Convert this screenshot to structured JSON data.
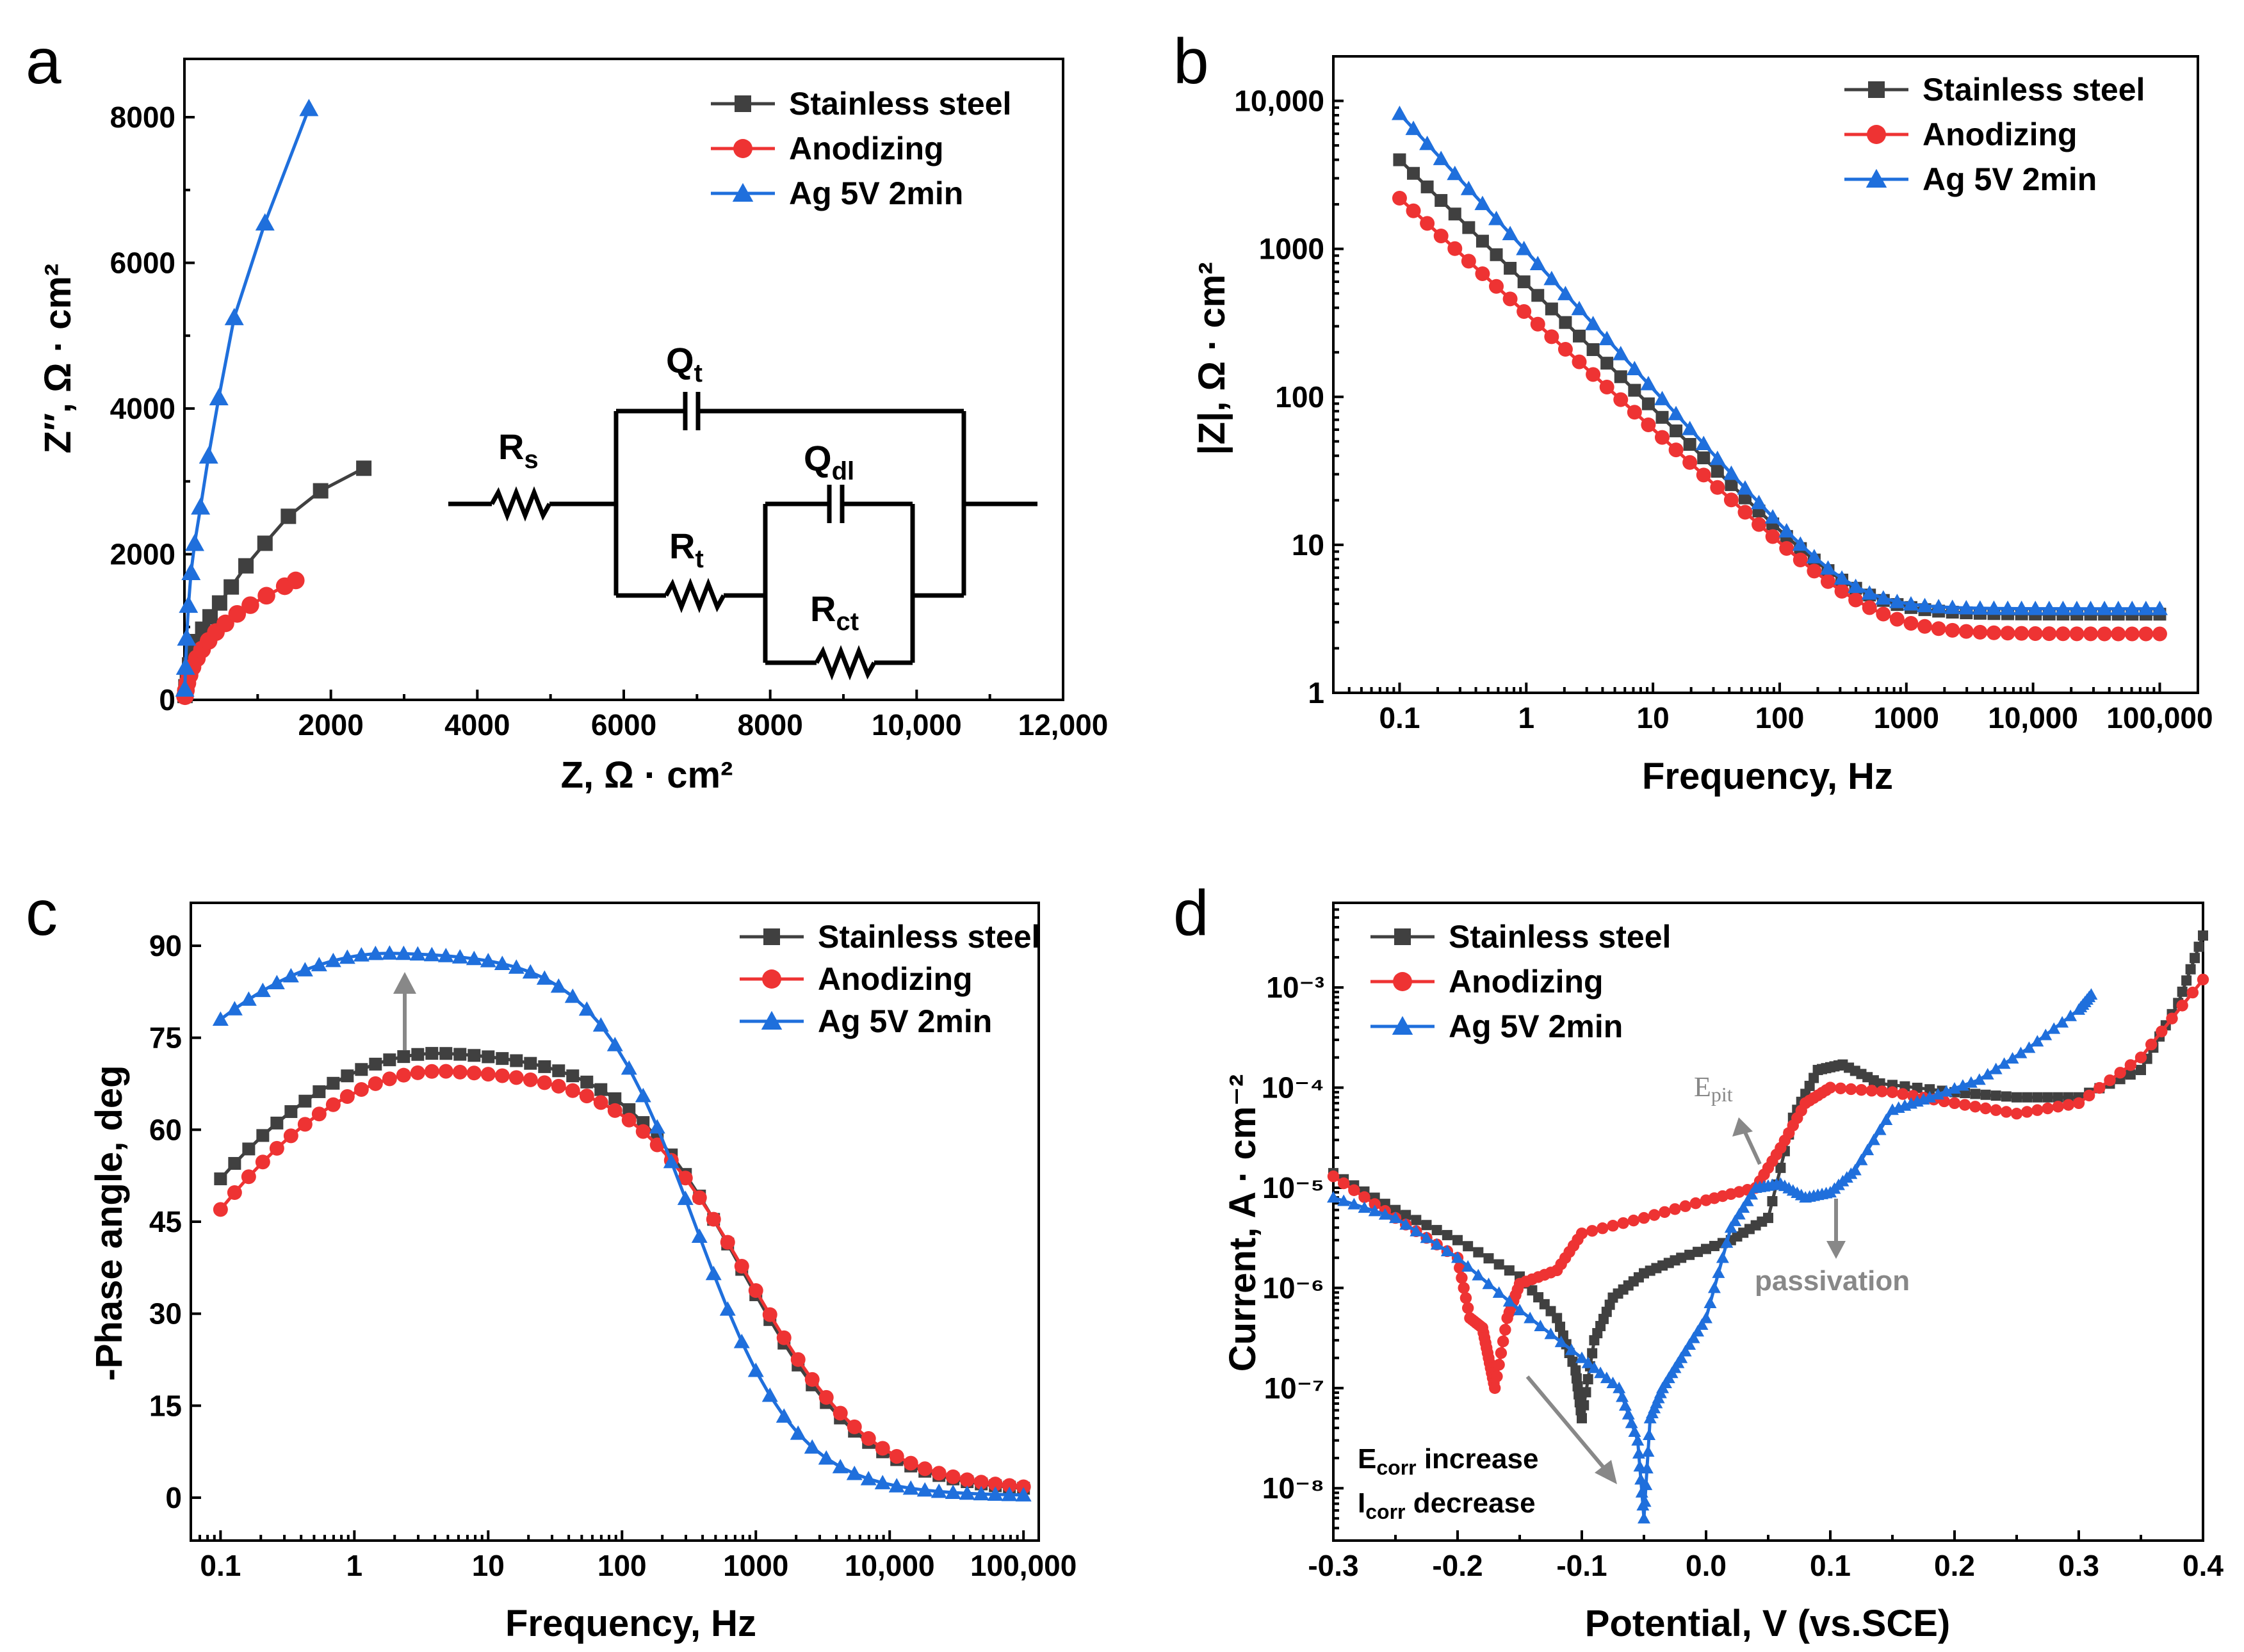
{
  "colors": {
    "Stainless steel": "#404040",
    "Anodizing": "#ee3333",
    "Ag 5V 2min": "#1f6fdc",
    "annotation": "#888888"
  },
  "legend_labels": [
    "Stainless steel",
    "Anodizing",
    "Ag 5V 2min"
  ],
  "circuit": {
    "Rs": "R",
    "Rs_sub": "s",
    "Qt": "Q",
    "Qt_sub": "t",
    "Qdl": "Q",
    "Qdl_sub": "dl",
    "Rt": "R",
    "Rt_sub": "t",
    "Rct": "R",
    "Rct_sub": "ct"
  },
  "annotations": {
    "epit": "E",
    "epit_sub": "pit",
    "passivation": "passivation",
    "ecorr": "E",
    "ecorr_sub": "corr",
    "ecorr_text": " increase",
    "icorr": "I",
    "icorr_sub": "corr",
    "icorr_text": " decrease"
  },
  "chart_data": [
    {
      "panel": "a",
      "type": "scatter",
      "title": "",
      "xlabel": "Z, Ω · cm²",
      "ylabel": "Z″, Ω · cm²",
      "xlim": [
        0,
        12000
      ],
      "ylim": [
        0,
        8800
      ],
      "xticks": [
        2000,
        4000,
        6000,
        8000,
        10000,
        12000
      ],
      "xtick_labels": [
        "2000",
        "4000",
        "6000",
        "8000",
        "10,000",
        "12,000"
      ],
      "yticks": [
        0,
        2000,
        4000,
        6000,
        8000
      ],
      "ytick_labels": [
        "0",
        "2000",
        "4000",
        "6000",
        "8000"
      ],
      "series": [
        {
          "name": "Stainless steel",
          "x": [
            8,
            20,
            40,
            70,
            110,
            170,
            250,
            350,
            480,
            640,
            840,
            1100,
            1420,
            1860,
            2450
          ],
          "y": [
            60,
            180,
            330,
            480,
            640,
            800,
            970,
            1140,
            1330,
            1550,
            1840,
            2150,
            2520,
            2870,
            3180
          ]
        },
        {
          "name": "Anodizing",
          "x": [
            8,
            20,
            40,
            70,
            110,
            170,
            240,
            330,
            430,
            560,
            720,
            900,
            1120,
            1370,
            1520
          ],
          "y": [
            50,
            130,
            230,
            340,
            450,
            570,
            690,
            810,
            930,
            1050,
            1180,
            1300,
            1430,
            1560,
            1640
          ]
        },
        {
          "name": "Ag 5V 2min",
          "x": [
            5,
            15,
            30,
            55,
            90,
            140,
            220,
            330,
            470,
            680,
            1100,
            1700
          ],
          "y": [
            150,
            450,
            850,
            1300,
            1750,
            2150,
            2650,
            3350,
            4150,
            5250,
            6550,
            8120
          ]
        }
      ]
    },
    {
      "panel": "b",
      "type": "line",
      "xscale": "log",
      "yscale": "log",
      "xlabel": "Frequency, Hz",
      "ylabel": "|Z|, Ω · cm²",
      "xlim": [
        0.03,
        200000
      ],
      "ylim": [
        1,
        20000
      ],
      "xtick_labels": [
        "0.1",
        "1",
        "10",
        "100",
        "1000",
        "10,000",
        "100,000"
      ],
      "ytick_labels": [
        "1",
        "10",
        "100",
        "1000",
        "10,000"
      ],
      "series": [
        {
          "name": "Stainless steel",
          "z_low": 4000,
          "slope": -0.84,
          "r_high": 3.4
        },
        {
          "name": "Anodizing",
          "z_low": 2200,
          "slope": -0.78,
          "r_high": 2.5
        },
        {
          "name": "Ag 5V 2min",
          "z_low": 8200,
          "slope": -0.93,
          "r_high": 3.7
        }
      ]
    },
    {
      "panel": "c",
      "type": "line",
      "xscale": "log",
      "xlabel": "Frequency, Hz",
      "ylabel": "-Phase angle, deg",
      "xlim": [
        0.06,
        130000
      ],
      "ylim": [
        -7,
        97
      ],
      "xtick_labels": [
        "0.1",
        "1",
        "10",
        "100",
        "1000",
        "10,000",
        "100,000"
      ],
      "ytick_labels": [
        "0",
        "15",
        "30",
        "45",
        "60",
        "75",
        "90"
      ],
      "series": [
        {
          "name": "Stainless steel",
          "start": 52,
          "peak": 73,
          "peak_freq": 5,
          "drop_freq": 800,
          "end": 0.8
        },
        {
          "name": "Anodizing",
          "start": 47,
          "peak": 70,
          "peak_freq": 5,
          "drop_freq": 900,
          "end": 1.0
        },
        {
          "name": "Ag 5V 2min",
          "start": 78,
          "peak": 89,
          "peak_freq": 2,
          "drop_freq": 350,
          "end": 0.3
        }
      ]
    },
    {
      "panel": "d",
      "type": "line",
      "yscale": "log",
      "xlabel": "Potential, V (vs.SCE)",
      "ylabel": "Current, A · cm⁻²",
      "xlim": [
        -0.3,
        0.4
      ],
      "ylim": [
        3e-09,
        0.007
      ],
      "xtick_labels": [
        "-0.3",
        "-0.2",
        "-0.1",
        "0.0",
        "0.1",
        "0.2",
        "0.3",
        "0.4"
      ],
      "ytick_labels": [
        "10⁻⁸",
        "10⁻⁷",
        "10⁻⁶",
        "10⁻⁵",
        "10⁻⁴",
        "10⁻³"
      ],
      "series": [
        {
          "name": "Stainless steel",
          "x": [
            -0.3,
            -0.25,
            -0.2,
            -0.15,
            -0.12,
            -0.105,
            -0.1,
            -0.09,
            -0.075,
            -0.05,
            -0.02,
            0.02,
            0.05,
            0.07,
            0.09,
            0.11,
            0.14,
            0.2,
            0.25,
            0.3,
            0.35,
            0.38,
            0.4
          ],
          "y": [
            1.4e-05,
            6e-06,
            3e-06,
            1.3e-06,
            5e-07,
            1.5e-07,
            5e-08,
            3e-07,
            8e-07,
            1.4e-06,
            2e-06,
            3e-06,
            5e-06,
            5e-05,
            0.00015,
            0.00017,
            0.00011,
            9e-05,
            8e-05,
            8e-05,
            0.00015,
            0.0007,
            0.0033
          ]
        },
        {
          "name": "Anodizing",
          "x": [
            -0.3,
            -0.25,
            -0.2,
            -0.19,
            -0.18,
            -0.175,
            -0.17,
            -0.16,
            -0.15,
            -0.12,
            -0.1,
            -0.05,
            0.0,
            0.04,
            0.06,
            0.08,
            0.1,
            0.15,
            0.2,
            0.25,
            0.3,
            0.35,
            0.4
          ],
          "y": [
            1.3e-05,
            5e-06,
            2e-06,
            5e-07,
            4e-07,
            2e-07,
            1e-07,
            5e-07,
            1.1e-06,
            1.5e-06,
            3.5e-06,
            5e-06,
            7.5e-06,
            1e-05,
            2.5e-05,
            7e-05,
            0.0001,
            9e-05,
            7e-05,
            5.5e-05,
            7e-05,
            0.0002,
            0.0012
          ]
        },
        {
          "name": "Ag 5V 2min",
          "x": [
            -0.3,
            -0.25,
            -0.2,
            -0.15,
            -0.1,
            -0.07,
            -0.055,
            -0.05,
            -0.045,
            -0.035,
            -0.02,
            0.0,
            0.02,
            0.04,
            0.06,
            0.08,
            0.1,
            0.12,
            0.15,
            0.18,
            0.22,
            0.26,
            0.3,
            0.31
          ],
          "y": [
            8e-06,
            5e-06,
            2e-06,
            6e-07,
            2e-07,
            1e-07,
            3e-08,
            5e-09,
            5e-08,
            1e-07,
            2e-07,
            5e-07,
            4e-06,
            1e-05,
            1.1e-05,
            8e-06,
            9e-06,
            1.5e-05,
            6e-05,
            8e-05,
            0.00012,
            0.00025,
            0.0006,
            0.00085
          ]
        }
      ]
    }
  ]
}
